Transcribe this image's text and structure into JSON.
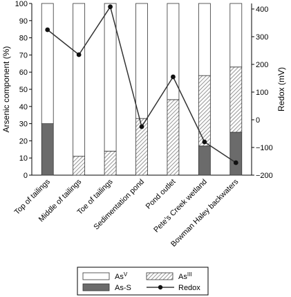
{
  "chart_data": {
    "type": "bar",
    "stacked": true,
    "categories": [
      "Top of tailings",
      "Middle of tailings",
      "Toe of tailings",
      "Sedimentation pond",
      "Pond outlet",
      "Pete's Creek wetland",
      "Bowman Haley backwaters"
    ],
    "series": [
      {
        "name": "As-S",
        "axis": "left",
        "fill": "dark",
        "values": [
          30,
          0,
          0,
          0,
          0,
          17,
          25
        ]
      },
      {
        "name": "AsIII",
        "axis": "left",
        "fill": "hatched",
        "values": [
          0,
          11,
          14,
          33,
          44,
          41,
          38
        ]
      },
      {
        "name": "AsV",
        "axis": "left",
        "fill": "white",
        "values": [
          70,
          89,
          86,
          67,
          56,
          42,
          37
        ]
      },
      {
        "name": "Redox",
        "axis": "right",
        "type": "line",
        "values": [
          325,
          235,
          408,
          -25,
          155,
          -80,
          -155
        ]
      }
    ],
    "ylabel": "Arsenic component (%)",
    "ylabel_right": "Redox (mV)",
    "ylim": [
      0,
      100
    ],
    "ylim_right": [
      -200,
      420
    ],
    "yticks": [
      0,
      10,
      20,
      30,
      40,
      50,
      60,
      70,
      80,
      90,
      100
    ],
    "yticks_right": [
      -200,
      -100,
      0,
      100,
      200,
      300,
      400
    ],
    "legend": {
      "placement": "bottom-center",
      "entries": [
        {
          "key": "AsV",
          "text": "As",
          "sup": "V"
        },
        {
          "key": "AsIII",
          "text": "As",
          "sup": "III"
        },
        {
          "key": "As-S",
          "text": "As-S",
          "sup": ""
        },
        {
          "key": "Redox",
          "text": "Redox",
          "sup": ""
        }
      ]
    },
    "colors": {
      "dark": "#6b6b6b",
      "hatch": "#888888",
      "line": "#333333"
    }
  }
}
